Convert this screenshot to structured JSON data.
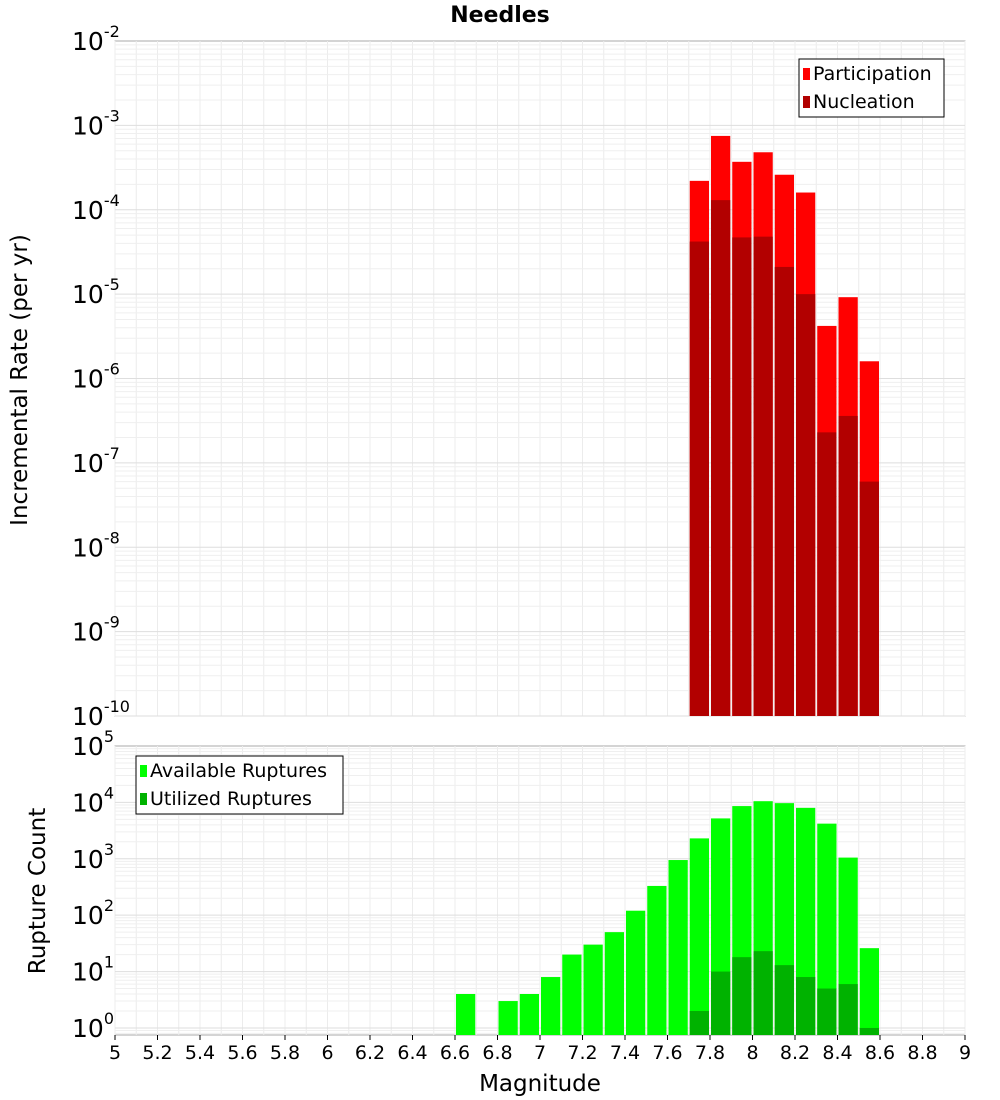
{
  "chart_data": [
    {
      "type": "bar",
      "title": "Needles",
      "ylabel": "Incremental Rate (per yr)",
      "yscale": "log",
      "ylim": [
        1e-10,
        0.01
      ],
      "xlim": [
        5,
        9
      ],
      "grid": true,
      "legend_position": "top-right",
      "bar_width": 0.1,
      "series": [
        {
          "name": "Participation",
          "color": "#ff0000",
          "x": [
            7.75,
            7.85,
            7.95,
            8.05,
            8.15,
            8.25,
            8.35,
            8.45,
            8.55
          ],
          "values": [
            0.00022,
            0.00075,
            0.00037,
            0.00048,
            0.00026,
            0.00016,
            4.2e-06,
            9.2e-06,
            1.6e-06
          ]
        },
        {
          "name": "Nucleation",
          "color": "#b20000",
          "x": [
            7.75,
            7.85,
            7.95,
            8.05,
            8.15,
            8.25,
            8.35,
            8.45,
            8.55
          ],
          "values": [
            4.2e-05,
            0.00013,
            4.7e-05,
            4.8e-05,
            2.1e-05,
            1e-05,
            2.3e-07,
            3.6e-07,
            6e-08
          ]
        }
      ]
    },
    {
      "type": "bar",
      "xlabel": "Magnitude",
      "ylabel": "Rupture Count",
      "yscale": "log",
      "ylim": [
        0.75,
        100000.0
      ],
      "xlim": [
        5,
        9
      ],
      "xticks": [
        "5",
        "5.2",
        "5.4",
        "5.6",
        "5.8",
        "6",
        "6.2",
        "6.4",
        "6.6",
        "6.8",
        "7",
        "7.2",
        "7.4",
        "7.6",
        "7.8",
        "8",
        "8.2",
        "8.4",
        "8.6",
        "8.8",
        "9"
      ],
      "grid": true,
      "legend_position": "top-left",
      "bar_width": 0.1,
      "series": [
        {
          "name": "Available Ruptures",
          "color": "#00ff00",
          "x": [
            6.65,
            6.85,
            6.95,
            7.05,
            7.15,
            7.25,
            7.35,
            7.45,
            7.55,
            7.65,
            7.75,
            7.85,
            7.95,
            8.05,
            8.15,
            8.25,
            8.35,
            8.45,
            8.55
          ],
          "values": [
            4,
            3,
            4,
            8,
            20,
            30,
            50,
            120,
            330,
            950,
            2300,
            5200,
            8600,
            10500,
            9700,
            8000,
            4200,
            1050,
            26
          ]
        },
        {
          "name": "Utilized Ruptures",
          "color": "#00b200",
          "x": [
            7.75,
            7.85,
            7.95,
            8.05,
            8.15,
            8.25,
            8.35,
            8.45,
            8.55
          ],
          "values": [
            2,
            10,
            18,
            23,
            13,
            8,
            5,
            6,
            1
          ]
        }
      ]
    }
  ]
}
